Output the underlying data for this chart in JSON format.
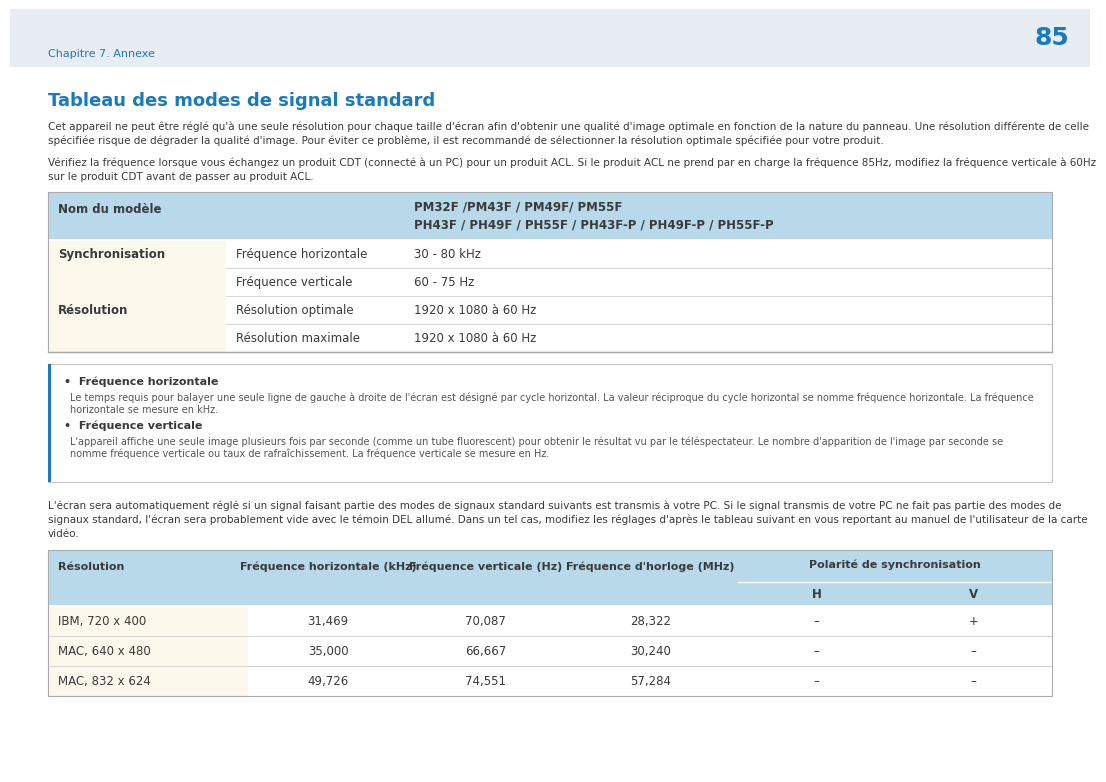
{
  "page_number": "85",
  "header_text": "Chapitre 7. Annexe",
  "header_bg": "#e8ecf3",
  "title": "Tableau des modes de signal standard",
  "title_color": "#1a7abf",
  "body_text1a": "Cet appareil ne peut être réglé qu'à une seule résolution pour chaque taille d'écran afin d'obtenir une qualité d'image optimale en fonction de la nature du panneau. Une résolution différente de celle",
  "body_text1b": "spécifiée risque de dégrader la qualité d'image. Pour éviter ce problème, il est recommandé de sélectionner la résolution optimale spécifiée pour votre produit.",
  "body_text2a": "Vérifiez la fréquence lorsque vous échangez un produit CDT (connecté à un PC) pour un produit ACL. Si le produit ACL ne prend par en charge la fréquence 85Hz, modifiez la fréquence verticale à 60Hz",
  "body_text2b": "sur le produit CDT avant de passer au produit ACL.",
  "table1_header_bg": "#b8d9ea",
  "table1_row_bg": "#fdf8ec",
  "model_line1": "PM32F /PM43F / PM49F/ PM55F",
  "model_line2": "PH43F / PH49F / PH55F / PH43F-P / PH49F-P / PH55F-P",
  "table1_rows": [
    [
      "Synchronisation",
      "Fréquence horizontale",
      "30 - 80 kHz"
    ],
    [
      "",
      "Fréquence verticale",
      "60 - 75 Hz"
    ],
    [
      "Résolution",
      "Résolution optimale",
      "1920 x 1080 à 60 Hz"
    ],
    [
      "",
      "Résolution maximale",
      "1920 x 1080 à 60 Hz"
    ]
  ],
  "info_box_border": "#1a7abf",
  "bullet1_title": "Fréquence horizontale",
  "bullet1_text1": "Le temps requis pour balayer une seule ligne de gauche à droite de l'écran est désigné par cycle horizontal. La valeur réciproque du cycle horizontal se nomme fréquence horizontale. La fréquence",
  "bullet1_text2": "horizontale se mesure en kHz.",
  "bullet2_title": "Fréquence verticale",
  "bullet2_text1": "L'appareil affiche une seule image plusieurs fois par seconde (comme un tube fluorescent) pour obtenir le résultat vu par le téléspectateur. Le nombre d'apparition de l'image par seconde se",
  "bullet2_text2": "nomme fréquence verticale ou taux de rafraîchissement. La fréquence verticale se mesure en Hz.",
  "body_text3a": "L'écran sera automatiquement réglé si un signal faisant partie des modes de signaux standard suivants est transmis à votre PC. Si le signal transmis de votre PC ne fait pas partie des modes de",
  "body_text3b": "signaux standard, l'écran sera probablement vide avec le témoin DEL allumé. Dans un tel cas, modifiez les réglages d'après le tableau suivant en vous reportant au manuel de l'utilisateur de la carte",
  "body_text3c": "vidéo.",
  "table2_header_bg": "#b8d9ea",
  "table2_row_bg1": "#fdf8ec",
  "table2_headers": [
    "Résolution",
    "Fréquence horizontale (kHz)",
    "Fréquence verticale (Hz)",
    "Fréquence d'horloge (MHz)",
    "Polarité de synchronisation"
  ],
  "table2_rows": [
    [
      "IBM, 720 x 400",
      "31,469",
      "70,087",
      "28,322",
      "–",
      "+"
    ],
    [
      "MAC, 640 x 480",
      "35,000",
      "66,667",
      "30,240",
      "–",
      "–"
    ],
    [
      "MAC, 832 x 624",
      "49,726",
      "74,551",
      "57,284",
      "–",
      "–"
    ]
  ],
  "text_color": "#3a3a3a",
  "text_color_light": "#555555",
  "line_color": "#cccccc",
  "line_color_dark": "#aaaaaa"
}
